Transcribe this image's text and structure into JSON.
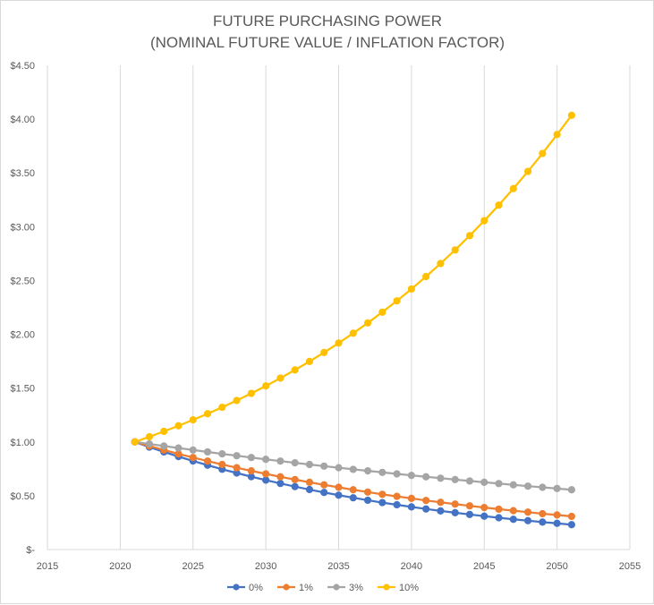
{
  "chart_data": {
    "type": "line",
    "title": [
      "FUTURE PURCHASING POWER",
      "(NOMINAL FUTURE VALUE / INFLATION FACTOR)"
    ],
    "xlabel": "",
    "ylabel": "",
    "xlim": [
      2015,
      2055
    ],
    "ylim": [
      0,
      4.5
    ],
    "x_ticks": [
      2015,
      2020,
      2025,
      2030,
      2035,
      2040,
      2045,
      2050,
      2055
    ],
    "y_ticks": [
      0,
      0.5,
      1.0,
      1.5,
      2.0,
      2.5,
      3.0,
      3.5,
      4.0,
      4.5
    ],
    "x_tick_labels": [
      "2015",
      "2020",
      "2025",
      "2030",
      "2035",
      "2040",
      "2045",
      "2050",
      "2055"
    ],
    "y_tick_labels": [
      "$-",
      "$0.50",
      "$1.00",
      "$1.50",
      "$2.00",
      "$2.50",
      "$3.00",
      "$3.50",
      "$4.00",
      "$4.50"
    ],
    "grid": "vertical",
    "legend_position": "bottom",
    "x": [
      2021,
      2022,
      2023,
      2024,
      2025,
      2026,
      2027,
      2028,
      2029,
      2030,
      2031,
      2032,
      2033,
      2034,
      2035,
      2036,
      2037,
      2038,
      2039,
      2040,
      2041,
      2042,
      2043,
      2044,
      2045,
      2046,
      2047,
      2048,
      2049,
      2050,
      2051
    ],
    "series": [
      {
        "name": "0%",
        "color": "#4472c4",
        "values": [
          1.0,
          0.952,
          0.907,
          0.864,
          0.823,
          0.784,
          0.746,
          0.711,
          0.677,
          0.645,
          0.614,
          0.585,
          0.557,
          0.53,
          0.505,
          0.481,
          0.458,
          0.436,
          0.416,
          0.396,
          0.377,
          0.359,
          0.342,
          0.326,
          0.31,
          0.295,
          0.281,
          0.268,
          0.255,
          0.243,
          0.231
        ]
      },
      {
        "name": "1%",
        "color": "#ed7d31",
        "values": [
          1.0,
          0.962,
          0.925,
          0.889,
          0.855,
          0.822,
          0.79,
          0.76,
          0.731,
          0.703,
          0.676,
          0.65,
          0.625,
          0.601,
          0.578,
          0.555,
          0.534,
          0.513,
          0.494,
          0.475,
          0.456,
          0.439,
          0.422,
          0.406,
          0.39,
          0.375,
          0.361,
          0.347,
          0.333,
          0.321,
          0.308
        ]
      },
      {
        "name": "3%",
        "color": "#a5a5a5",
        "values": [
          1.0,
          0.981,
          0.962,
          0.943,
          0.925,
          0.907,
          0.889,
          0.872,
          0.855,
          0.838,
          0.822,
          0.806,
          0.79,
          0.775,
          0.76,
          0.745,
          0.731,
          0.717,
          0.703,
          0.689,
          0.676,
          0.663,
          0.65,
          0.637,
          0.625,
          0.613,
          0.601,
          0.589,
          0.578,
          0.567,
          0.555
        ]
      },
      {
        "name": "10%",
        "color": "#ffc000",
        "values": [
          1.0,
          1.048,
          1.098,
          1.15,
          1.205,
          1.262,
          1.322,
          1.385,
          1.451,
          1.52,
          1.593,
          1.669,
          1.748,
          1.831,
          1.919,
          2.01,
          2.106,
          2.206,
          2.311,
          2.421,
          2.537,
          2.658,
          2.784,
          2.917,
          3.056,
          3.201,
          3.354,
          3.514,
          3.681,
          3.857,
          4.035
        ]
      }
    ]
  }
}
